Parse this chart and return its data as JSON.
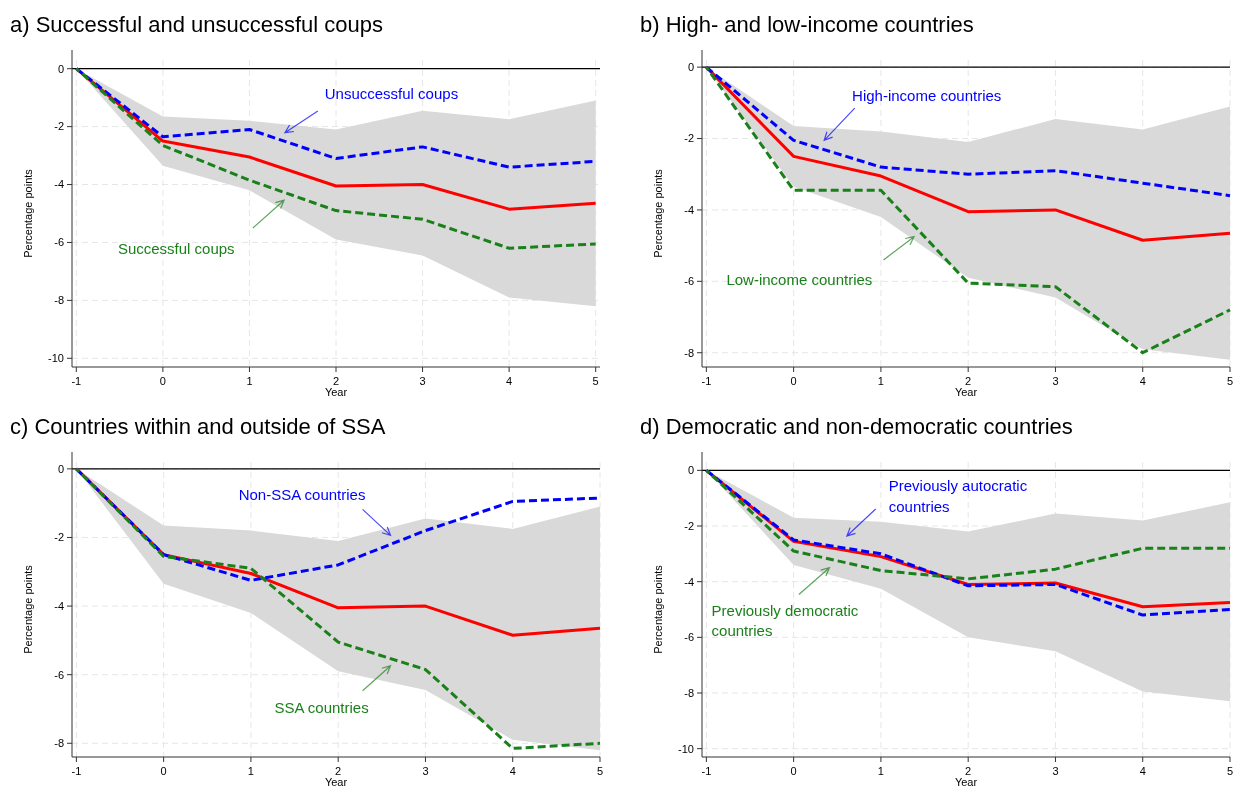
{
  "chart_data": [
    {
      "type": "line",
      "title": "a) Successful and unsuccessful coups",
      "xlabel": "Year",
      "ylabel": "Percentage points",
      "x": [
        -1,
        0,
        1,
        2,
        3,
        4,
        5
      ],
      "xlim": [
        -1.05,
        5.05
      ],
      "xticks": [
        -1,
        0,
        1,
        2,
        3,
        4,
        5
      ],
      "ylim": [
        -10.3,
        0.3
      ],
      "yticks": [
        -10,
        -8,
        -6,
        -4,
        -2,
        0
      ],
      "grid": true,
      "ref_lines": [
        {
          "axis": "y",
          "value": 0,
          "color": "#000000"
        }
      ],
      "series": [
        {
          "color": "#ff0000",
          "line_style": "solid",
          "values": [
            0,
            -2.5,
            -3.05,
            -4.05,
            -4.0,
            -4.85,
            -4.65
          ],
          "lower": [
            0,
            -3.35,
            -4.2,
            -5.9,
            -6.45,
            -7.9,
            -8.2
          ],
          "upper": [
            0,
            -1.65,
            -1.8,
            -2.1,
            -1.45,
            -1.75,
            -1.1
          ]
        },
        {
          "name": "Unsuccessful coups",
          "color": "#0000ff",
          "line_style": "dashed",
          "values": [
            0,
            -2.35,
            -2.1,
            -3.1,
            -2.7,
            -3.4,
            -3.2
          ]
        },
        {
          "name": "Successful coups",
          "color": "#1a801a",
          "line_style": "dashed",
          "values": [
            0,
            -2.65,
            -3.85,
            -4.9,
            -5.2,
            -6.2,
            -6.05
          ]
        }
      ]
    },
    {
      "type": "line",
      "title": "b) High- and low-income countries",
      "xlabel": "Year",
      "ylabel": "Percentage points",
      "x": [
        -1,
        0,
        1,
        2,
        3,
        4,
        5
      ],
      "xlim": [
        -1.05,
        5.0
      ],
      "xticks": [
        -1,
        0,
        1,
        2,
        3,
        4,
        5
      ],
      "ylim": [
        -8.4,
        0.2
      ],
      "yticks": [
        -8,
        -6,
        -4,
        -2,
        0
      ],
      "grid": true,
      "ref_lines": [
        {
          "axis": "y",
          "value": 0,
          "color": "#000000"
        }
      ],
      "series": [
        {
          "color": "#ff0000",
          "line_style": "solid",
          "values": [
            0,
            -2.5,
            -3.05,
            -4.05,
            -4.0,
            -4.85,
            -4.65
          ],
          "lower": [
            0,
            -3.35,
            -4.2,
            -5.9,
            -6.45,
            -7.9,
            -8.2
          ],
          "upper": [
            0,
            -1.65,
            -1.8,
            -2.1,
            -1.45,
            -1.75,
            -1.1
          ]
        },
        {
          "name": "High-income countries",
          "color": "#0000ff",
          "line_style": "dashed",
          "values": [
            0,
            -2.05,
            -2.8,
            -3.0,
            -2.9,
            -3.25,
            -3.6
          ]
        },
        {
          "name": "Low-income countries",
          "color": "#1a801a",
          "line_style": "dashed",
          "values": [
            0,
            -3.45,
            -3.45,
            -6.05,
            -6.15,
            -8.0,
            -6.8
          ]
        }
      ]
    },
    {
      "type": "line",
      "title": "c) Countries within and outside of SSA",
      "xlabel": "Year",
      "ylabel": "Percentage points",
      "x": [
        -1,
        0,
        1,
        2,
        3,
        4,
        5
      ],
      "xlim": [
        -1.05,
        5.0
      ],
      "xticks": [
        -1,
        0,
        1,
        2,
        3,
        4,
        5
      ],
      "ylim": [
        -8.4,
        0.2
      ],
      "yticks": [
        -8,
        -6,
        -4,
        -2,
        0
      ],
      "grid": true,
      "ref_lines": [
        {
          "axis": "y",
          "value": 0,
          "color": "#000000"
        }
      ],
      "series": [
        {
          "color": "#ff0000",
          "line_style": "solid",
          "values": [
            0,
            -2.5,
            -3.05,
            -4.05,
            -4.0,
            -4.85,
            -4.65
          ],
          "lower": [
            0,
            -3.35,
            -4.2,
            -5.9,
            -6.45,
            -7.9,
            -8.2
          ],
          "upper": [
            0,
            -1.65,
            -1.8,
            -2.1,
            -1.45,
            -1.75,
            -1.1
          ]
        },
        {
          "name": "Non-SSA countries",
          "color": "#0000ff",
          "line_style": "dashed",
          "values": [
            0,
            -2.5,
            -3.25,
            -2.8,
            -1.8,
            -0.95,
            -0.85
          ]
        },
        {
          "name": "SSA countries",
          "color": "#1a801a",
          "line_style": "dashed",
          "values": [
            0,
            -2.55,
            -2.9,
            -5.05,
            -5.85,
            -8.15,
            -8.0
          ]
        }
      ]
    },
    {
      "type": "line",
      "title": "d) Democratic and non-democratic countries",
      "xlabel": "Year",
      "ylabel": "Percentage points",
      "x": [
        -1,
        0,
        1,
        2,
        3,
        4,
        5
      ],
      "xlim": [
        -1.05,
        5.0
      ],
      "xticks": [
        -1,
        0,
        1,
        2,
        3,
        4,
        5
      ],
      "ylim": [
        -10.3,
        0.3
      ],
      "yticks": [
        -10,
        -8,
        -6,
        -4,
        -2,
        0
      ],
      "grid": true,
      "ref_lines": [
        {
          "axis": "y",
          "value": 0,
          "color": "#000000"
        }
      ],
      "series": [
        {
          "color": "#ff0000",
          "line_style": "solid",
          "values": [
            0,
            -2.55,
            -3.1,
            -4.1,
            -4.05,
            -4.9,
            -4.75
          ],
          "lower": [
            0,
            -3.4,
            -4.25,
            -6.0,
            -6.5,
            -7.95,
            -8.3
          ],
          "upper": [
            0,
            -1.7,
            -1.85,
            -2.2,
            -1.55,
            -1.8,
            -1.15
          ]
        },
        {
          "name": "Previously autocratic countries",
          "color": "#0000ff",
          "line_style": "dashed",
          "values": [
            0,
            -2.5,
            -3.0,
            -4.15,
            -4.1,
            -5.2,
            -5.0
          ]
        },
        {
          "name": "Previously democratic countries",
          "color": "#1a801a",
          "line_style": "dashed",
          "values": [
            0,
            -2.9,
            -3.6,
            -3.9,
            -3.55,
            -2.8,
            -2.8
          ]
        }
      ]
    }
  ]
}
